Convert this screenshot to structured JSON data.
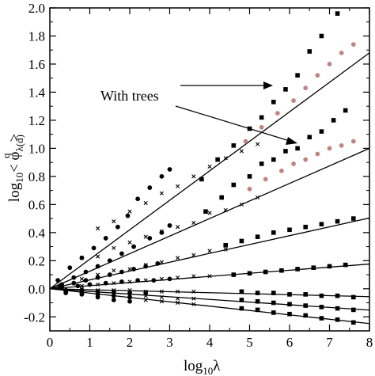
{
  "chart_data": {
    "type": "scatter",
    "xlim": [
      0,
      8
    ],
    "ylim": [
      -0.3,
      2.0
    ],
    "x_ticks": [
      "0",
      "1",
      "2",
      "3",
      "4",
      "5",
      "6",
      "7",
      "8"
    ],
    "y_ticks": [
      "-0.2",
      "0.0",
      "0.2",
      "0.4",
      "0.6",
      "0.8",
      "1.0",
      "1.2",
      "1.4",
      "1.6",
      "1.8",
      "2.0"
    ],
    "xlabel": {
      "base": "log",
      "sub": "10",
      "tail": "λ"
    },
    "ylabel": {
      "prefix": "log",
      "sub10": "10",
      "lt": "< φ",
      "sub": "λ(d)",
      "sup": "q",
      "gt": ">"
    },
    "annotation": {
      "text": "With trees"
    },
    "grid": false,
    "fit_lines": [
      {
        "slope": 0.21,
        "x_range": [
          0,
          8
        ]
      },
      {
        "slope": 0.125,
        "x_range": [
          0,
          8
        ]
      },
      {
        "slope": 0.063,
        "x_range": [
          0,
          8
        ]
      },
      {
        "slope": 0.022,
        "x_range": [
          0,
          8
        ]
      },
      {
        "slope": -0.007,
        "x_range": [
          0,
          8
        ]
      },
      {
        "slope": -0.019,
        "x_range": [
          0,
          8
        ]
      },
      {
        "slope": -0.031,
        "x_range": [
          0,
          8
        ]
      }
    ],
    "series": [
      {
        "marker": "circle",
        "color": "#000000",
        "points": [
          [
            0.2,
            0.06
          ],
          [
            0.5,
            0.15
          ],
          [
            0.8,
            0.22
          ],
          [
            1.1,
            0.29
          ],
          [
            1.4,
            0.36
          ],
          [
            1.7,
            0.44
          ],
          [
            1.95,
            0.52
          ],
          [
            2.2,
            0.64
          ],
          [
            2.5,
            0.72
          ],
          [
            2.8,
            0.8
          ],
          [
            3.0,
            0.85
          ],
          [
            0.3,
            0.03
          ],
          [
            0.6,
            0.08
          ],
          [
            0.9,
            0.12
          ],
          [
            1.2,
            0.16
          ],
          [
            1.5,
            0.2
          ],
          [
            1.8,
            0.25
          ],
          [
            2.1,
            0.3
          ],
          [
            2.5,
            0.36
          ],
          [
            2.8,
            0.4
          ],
          [
            3.0,
            0.45
          ],
          [
            0.25,
            0.02
          ],
          [
            0.6,
            0.04
          ],
          [
            0.9,
            0.06
          ],
          [
            1.2,
            0.08
          ],
          [
            1.5,
            0.1
          ],
          [
            1.8,
            0.12
          ],
          [
            2.1,
            0.14
          ],
          [
            2.4,
            0.16
          ],
          [
            2.7,
            0.18
          ],
          [
            0.3,
            0.01
          ],
          [
            0.7,
            0.02
          ],
          [
            1.0,
            0.03
          ],
          [
            1.4,
            0.04
          ],
          [
            1.8,
            0.05
          ],
          [
            2.2,
            0.06
          ],
          [
            2.6,
            0.06
          ],
          [
            3.0,
            0.07
          ],
          [
            0.4,
            -0.01
          ],
          [
            0.8,
            -0.01
          ],
          [
            1.2,
            -0.02
          ],
          [
            1.6,
            -0.02
          ],
          [
            2.0,
            -0.03
          ],
          [
            2.4,
            -0.03
          ],
          [
            0.4,
            -0.02
          ],
          [
            0.8,
            -0.03
          ],
          [
            1.2,
            -0.04
          ],
          [
            1.6,
            -0.05
          ],
          [
            2.0,
            -0.06
          ],
          [
            0.4,
            -0.03
          ],
          [
            0.8,
            -0.04
          ],
          [
            1.2,
            -0.06
          ],
          [
            1.6,
            -0.08
          ],
          [
            2.0,
            -0.09
          ]
        ]
      },
      {
        "marker": "cross",
        "color": "#000000",
        "points": [
          [
            1.2,
            0.43
          ],
          [
            1.6,
            0.48
          ],
          [
            2.0,
            0.55
          ],
          [
            2.4,
            0.61
          ],
          [
            2.8,
            0.68
          ],
          [
            3.2,
            0.73
          ],
          [
            3.6,
            0.8
          ],
          [
            4.0,
            0.87
          ],
          [
            4.4,
            0.93
          ],
          [
            4.8,
            0.98
          ],
          [
            5.2,
            1.03
          ],
          [
            0.8,
            0.22
          ],
          [
            1.2,
            0.23
          ],
          [
            1.6,
            0.29
          ],
          [
            2.0,
            0.33
          ],
          [
            2.4,
            0.37
          ],
          [
            2.8,
            0.41
          ],
          [
            3.2,
            0.44
          ],
          [
            3.6,
            0.47
          ],
          [
            4.0,
            0.54
          ],
          [
            4.4,
            0.56
          ],
          [
            4.8,
            0.6
          ],
          [
            5.2,
            0.65
          ],
          [
            0.8,
            0.07
          ],
          [
            1.2,
            0.1
          ],
          [
            1.6,
            0.13
          ],
          [
            2.0,
            0.14
          ],
          [
            2.4,
            0.17
          ],
          [
            2.8,
            0.19
          ],
          [
            3.2,
            0.22
          ],
          [
            3.6,
            0.24
          ],
          [
            4.0,
            0.27
          ],
          [
            4.4,
            0.28
          ],
          [
            0.8,
            0.02
          ],
          [
            1.2,
            0.03
          ],
          [
            1.6,
            0.04
          ],
          [
            2.0,
            0.05
          ],
          [
            2.4,
            0.06
          ],
          [
            2.8,
            0.07
          ],
          [
            3.2,
            0.08
          ],
          [
            3.6,
            0.09
          ],
          [
            4.0,
            0.09
          ],
          [
            0.8,
            0.0
          ],
          [
            1.2,
            -0.01
          ],
          [
            1.6,
            -0.01
          ],
          [
            2.0,
            -0.01
          ],
          [
            2.4,
            -0.02
          ],
          [
            2.8,
            -0.02
          ],
          [
            3.2,
            -0.02
          ],
          [
            3.6,
            -0.02
          ],
          [
            0.8,
            -0.01
          ],
          [
            1.2,
            -0.02
          ],
          [
            1.6,
            -0.03
          ],
          [
            2.0,
            -0.04
          ],
          [
            2.4,
            -0.05
          ],
          [
            2.8,
            -0.06
          ],
          [
            3.2,
            -0.07
          ],
          [
            3.6,
            -0.07
          ],
          [
            0.8,
            -0.02
          ],
          [
            1.2,
            -0.04
          ],
          [
            1.6,
            -0.05
          ],
          [
            2.0,
            -0.06
          ],
          [
            2.4,
            -0.08
          ],
          [
            2.8,
            -0.09
          ],
          [
            3.2,
            -0.1
          ],
          [
            3.6,
            -0.11
          ]
        ]
      },
      {
        "marker": "square",
        "color": "#000000",
        "points": [
          [
            3.8,
            0.78
          ],
          [
            4.2,
            0.92
          ],
          [
            4.6,
            1.02
          ],
          [
            5.0,
            1.14
          ],
          [
            5.3,
            1.22
          ],
          [
            5.6,
            1.33
          ],
          [
            5.9,
            1.42
          ],
          [
            6.2,
            1.52
          ],
          [
            6.5,
            1.69
          ],
          [
            6.8,
            1.8
          ],
          [
            7.2,
            1.96
          ],
          [
            3.9,
            0.55
          ],
          [
            4.3,
            0.65
          ],
          [
            4.6,
            0.74
          ],
          [
            5.0,
            0.8
          ],
          [
            5.3,
            0.89
          ],
          [
            5.6,
            0.92
          ],
          [
            5.9,
            0.98
          ],
          [
            6.2,
            1.0
          ],
          [
            6.5,
            1.08
          ],
          [
            6.8,
            1.12
          ],
          [
            7.1,
            1.2
          ],
          [
            7.4,
            1.27
          ],
          [
            4.4,
            0.31
          ],
          [
            4.8,
            0.34
          ],
          [
            5.2,
            0.37
          ],
          [
            5.6,
            0.4
          ],
          [
            6.0,
            0.42
          ],
          [
            6.4,
            0.44
          ],
          [
            6.8,
            0.46
          ],
          [
            7.2,
            0.48
          ],
          [
            7.6,
            0.5
          ],
          [
            4.6,
            0.1
          ],
          [
            5.0,
            0.11
          ],
          [
            5.4,
            0.12
          ],
          [
            5.8,
            0.13
          ],
          [
            6.2,
            0.14
          ],
          [
            6.6,
            0.15
          ],
          [
            7.0,
            0.16
          ],
          [
            7.4,
            0.17
          ],
          [
            4.8,
            -0.02
          ],
          [
            5.2,
            -0.03
          ],
          [
            5.6,
            -0.03
          ],
          [
            6.0,
            -0.04
          ],
          [
            6.4,
            -0.04
          ],
          [
            6.8,
            -0.05
          ],
          [
            7.2,
            -0.05
          ],
          [
            7.6,
            -0.06
          ],
          [
            4.8,
            -0.08
          ],
          [
            5.2,
            -0.09
          ],
          [
            5.6,
            -0.1
          ],
          [
            6.0,
            -0.11
          ],
          [
            6.4,
            -0.12
          ],
          [
            6.8,
            -0.13
          ],
          [
            7.2,
            -0.14
          ],
          [
            7.6,
            -0.15
          ],
          [
            4.8,
            -0.14
          ],
          [
            5.2,
            -0.15
          ],
          [
            5.6,
            -0.17
          ],
          [
            6.0,
            -0.18
          ],
          [
            6.4,
            -0.19
          ],
          [
            6.8,
            -0.21
          ],
          [
            7.2,
            -0.22
          ],
          [
            7.6,
            -0.24
          ]
        ]
      },
      {
        "marker": "circle",
        "color": "#c0857f",
        "points": [
          [
            4.9,
            1.05
          ],
          [
            5.3,
            1.15
          ],
          [
            5.7,
            1.25
          ],
          [
            6.1,
            1.34
          ],
          [
            6.4,
            1.43
          ],
          [
            6.7,
            1.52
          ],
          [
            7.0,
            1.6
          ],
          [
            7.3,
            1.68
          ],
          [
            7.6,
            1.74
          ],
          [
            5.0,
            0.71
          ],
          [
            5.4,
            0.78
          ],
          [
            5.8,
            0.84
          ],
          [
            6.1,
            0.89
          ],
          [
            6.4,
            0.92
          ],
          [
            6.7,
            0.96
          ],
          [
            7.0,
            1.0
          ],
          [
            7.3,
            1.02
          ],
          [
            7.6,
            1.05
          ]
        ]
      }
    ]
  }
}
